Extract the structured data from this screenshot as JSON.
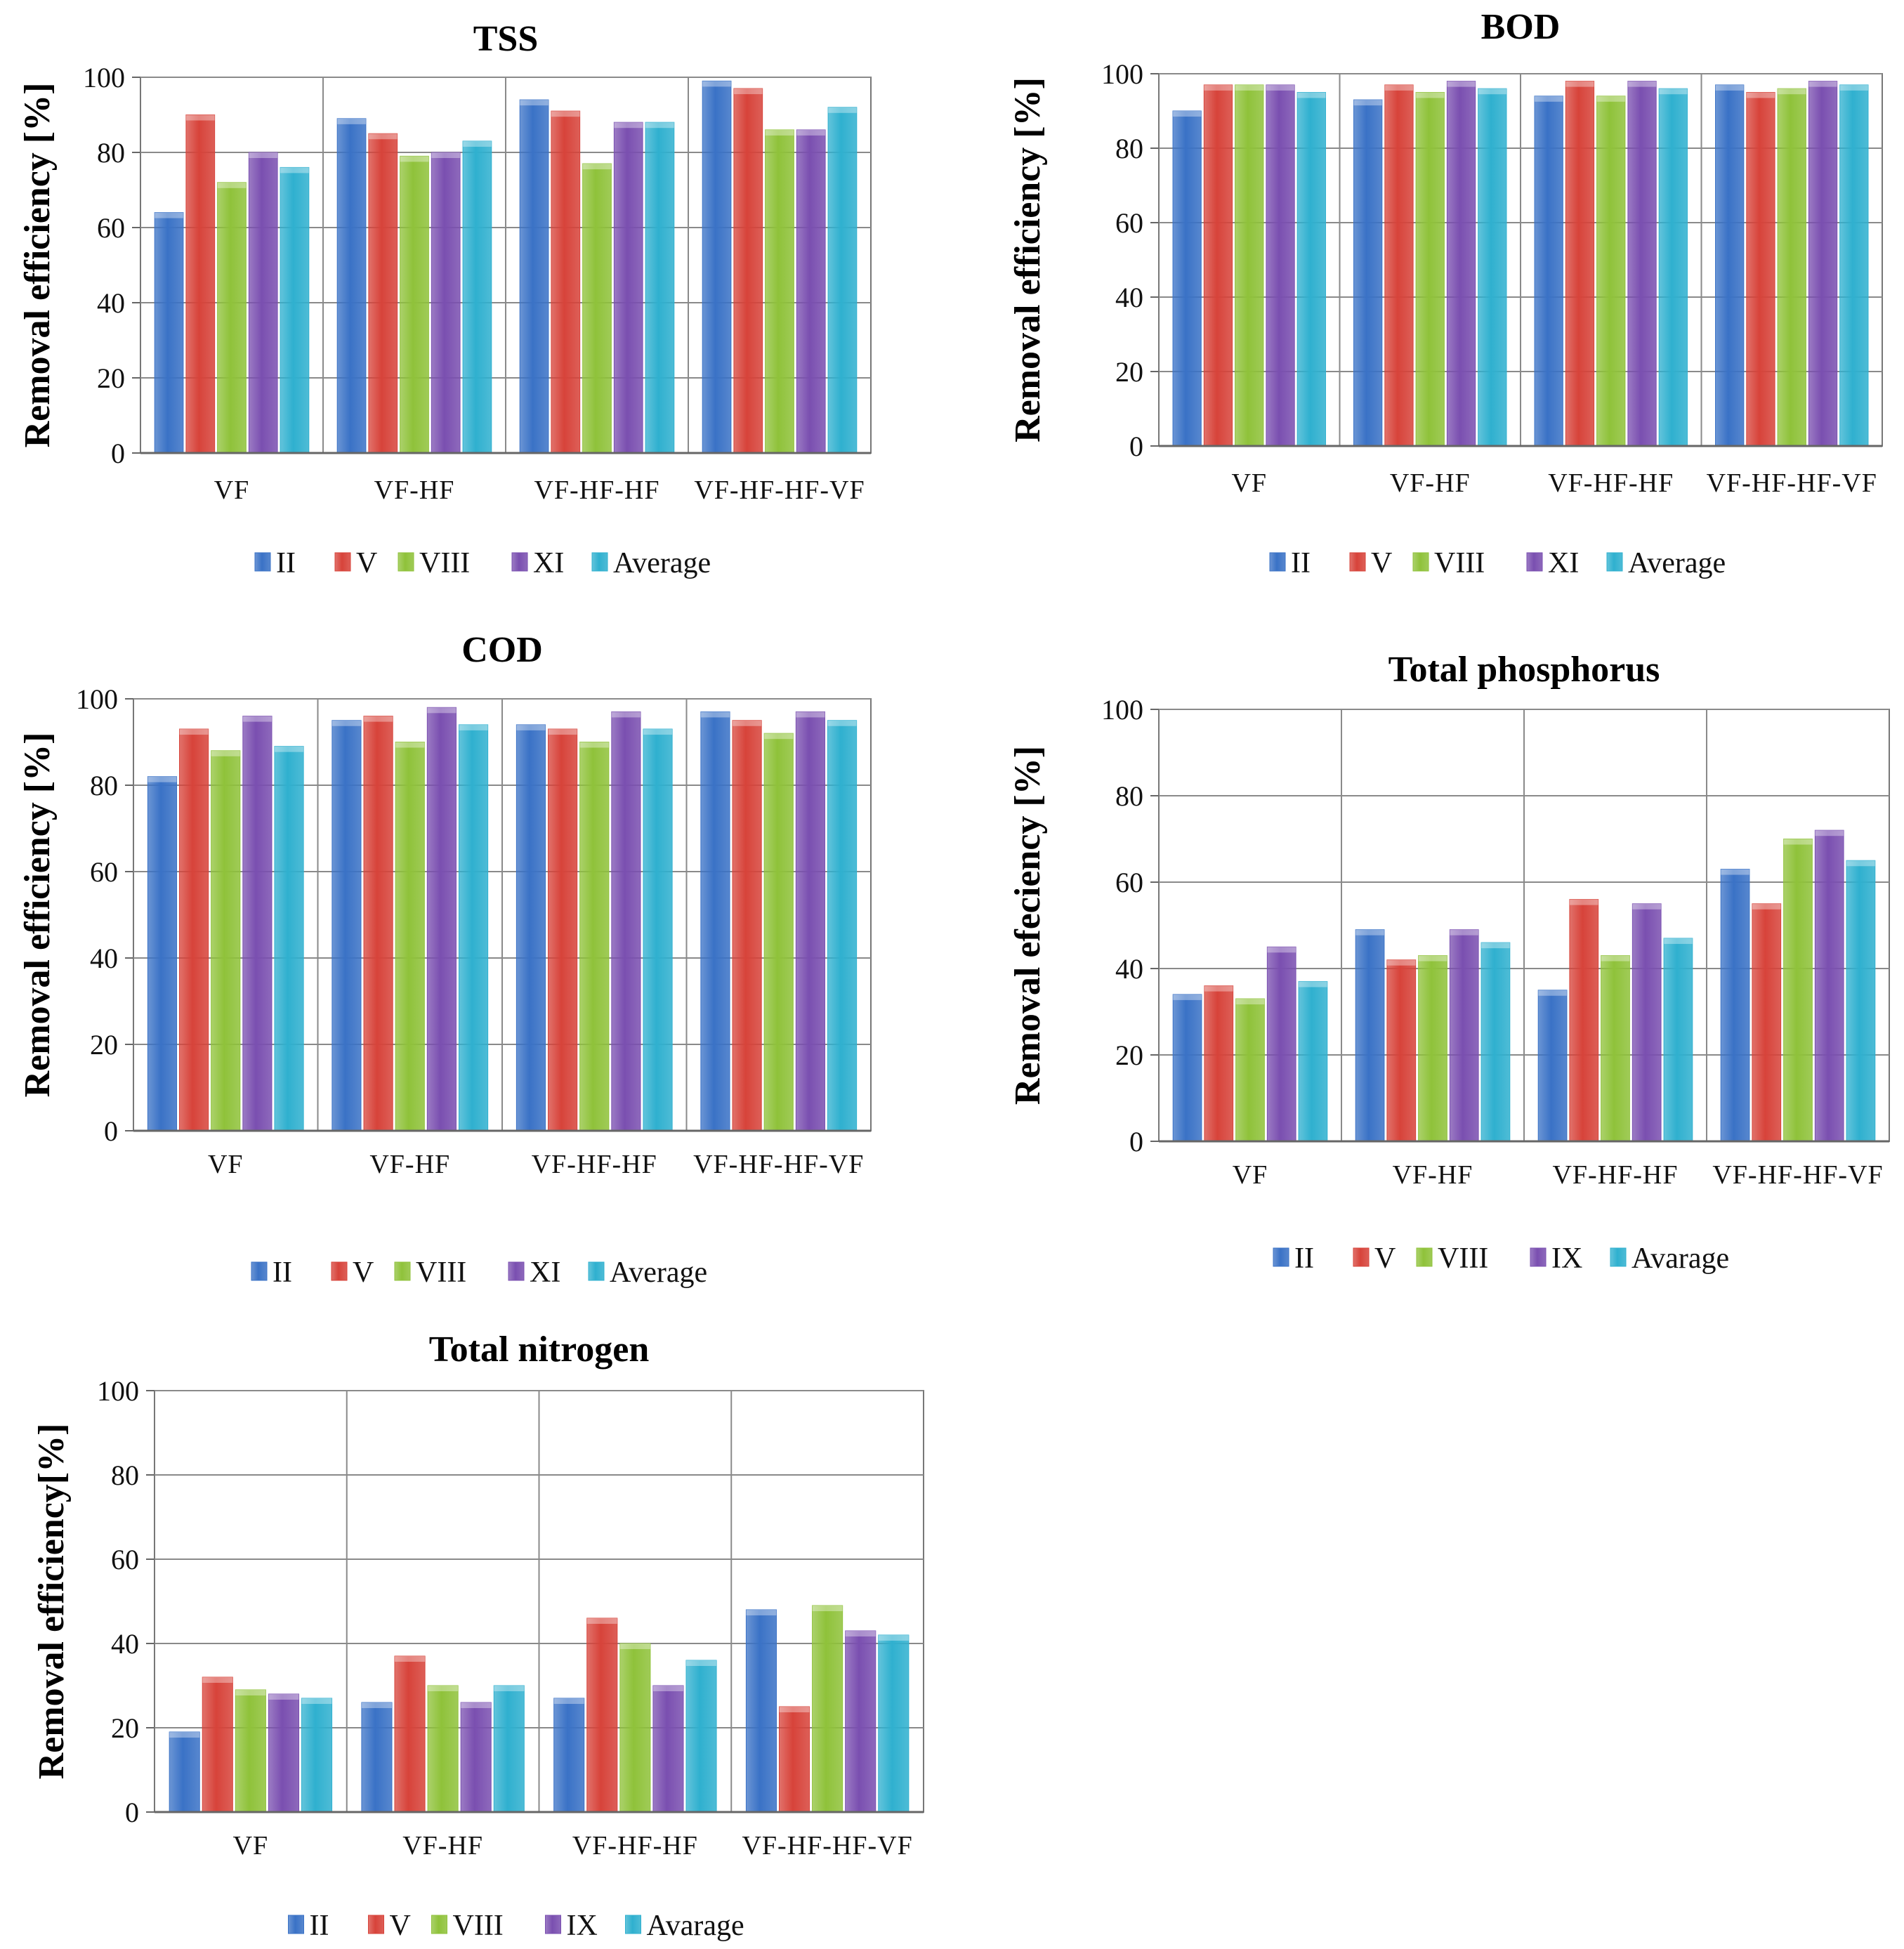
{
  "series_colors": [
    "#3a72c6",
    "#d7433a",
    "#8fc23a",
    "#7a4fb0",
    "#2fb0cf"
  ],
  "chart_data": [
    {
      "type": "bar",
      "title": "TSS",
      "ylabel": "Removal efficiency [%]",
      "xlabel": "",
      "ylim": [
        0,
        100
      ],
      "yticks": [
        "0",
        "20",
        "40",
        "60",
        "80",
        "100"
      ],
      "categories": [
        "VF",
        "VF-HF",
        "VF-HF-HF",
        "VF-HF-HF-VF"
      ],
      "series": [
        {
          "name": "II",
          "values": [
            64,
            89,
            94,
            99
          ]
        },
        {
          "name": "V",
          "values": [
            90,
            85,
            91,
            97
          ]
        },
        {
          "name": "VIII",
          "values": [
            72,
            79,
            77,
            86
          ]
        },
        {
          "name": "XI",
          "values": [
            80,
            80,
            88,
            86
          ]
        },
        {
          "name": "Average",
          "values": [
            76,
            83,
            88,
            92
          ]
        }
      ],
      "legend": "bottom"
    },
    {
      "type": "bar",
      "title": "BOD",
      "ylabel": "Removal efficiency [%]",
      "xlabel": "",
      "ylim": [
        0,
        100
      ],
      "yticks": [
        "0",
        "20",
        "40",
        "60",
        "80",
        "100"
      ],
      "categories": [
        "VF",
        "VF-HF",
        "VF-HF-HF",
        "VF-HF-HF-VF"
      ],
      "series": [
        {
          "name": "II",
          "values": [
            90,
            93,
            94,
            97
          ]
        },
        {
          "name": "V",
          "values": [
            97,
            97,
            98,
            95
          ]
        },
        {
          "name": "VIII",
          "values": [
            97,
            95,
            94,
            96
          ]
        },
        {
          "name": "XI",
          "values": [
            97,
            98,
            98,
            98
          ]
        },
        {
          "name": "Average",
          "values": [
            95,
            96,
            96,
            97
          ]
        }
      ],
      "legend": "bottom"
    },
    {
      "type": "bar",
      "title": "COD",
      "ylabel": "Removal efficiency [%]",
      "xlabel": "",
      "ylim": [
        0,
        100
      ],
      "yticks": [
        "0",
        "20",
        "40",
        "60",
        "80",
        "100"
      ],
      "categories": [
        "VF",
        "VF-HF",
        "VF-HF-HF",
        "VF-HF-HF-VF"
      ],
      "series": [
        {
          "name": "II",
          "values": [
            82,
            95,
            94,
            97
          ]
        },
        {
          "name": "V",
          "values": [
            93,
            96,
            93,
            95
          ]
        },
        {
          "name": "VIII",
          "values": [
            88,
            90,
            90,
            92
          ]
        },
        {
          "name": "XI",
          "values": [
            96,
            98,
            97,
            97
          ]
        },
        {
          "name": "Average",
          "values": [
            89,
            94,
            93,
            95
          ]
        }
      ],
      "legend": "bottom"
    },
    {
      "type": "bar",
      "title": "Total phosphorus",
      "ylabel": "Removal efeciency [%]",
      "xlabel": "",
      "ylim": [
        0,
        100
      ],
      "yticks": [
        "0",
        "20",
        "40",
        "60",
        "80",
        "100"
      ],
      "categories": [
        "VF",
        "VF-HF",
        "VF-HF-HF",
        "VF-HF-HF-VF"
      ],
      "series": [
        {
          "name": "II",
          "values": [
            34,
            49,
            35,
            63
          ]
        },
        {
          "name": "V",
          "values": [
            36,
            42,
            56,
            55
          ]
        },
        {
          "name": "VIII",
          "values": [
            33,
            43,
            43,
            70
          ]
        },
        {
          "name": "IX",
          "values": [
            45,
            49,
            55,
            72
          ]
        },
        {
          "name": "Avarage",
          "values": [
            37,
            46,
            47,
            65
          ]
        }
      ],
      "legend": "bottom"
    },
    {
      "type": "bar",
      "title": "Total nitrogen",
      "ylabel": "Removal efficiency[%]",
      "xlabel": "",
      "ylim": [
        0,
        100
      ],
      "yticks": [
        "0",
        "20",
        "40",
        "60",
        "80",
        "100"
      ],
      "categories": [
        "VF",
        "VF-HF",
        "VF-HF-HF",
        "VF-HF-HF-VF"
      ],
      "series": [
        {
          "name": "II",
          "values": [
            19,
            26,
            27,
            48
          ]
        },
        {
          "name": "V",
          "values": [
            32,
            37,
            46,
            25
          ]
        },
        {
          "name": "VIII",
          "values": [
            29,
            30,
            40,
            49
          ]
        },
        {
          "name": "IX",
          "values": [
            28,
            26,
            30,
            43
          ]
        },
        {
          "name": "Avarage",
          "values": [
            27,
            30,
            36,
            42
          ]
        }
      ],
      "legend": "bottom"
    }
  ]
}
